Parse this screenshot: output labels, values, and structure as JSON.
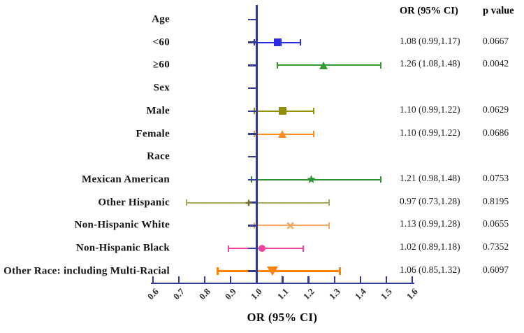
{
  "figure": {
    "x_axis_title": "OR (95% CI)"
  },
  "chart_data": {
    "type": "forest",
    "title": "",
    "xlabel": "OR (95% CI)",
    "ylabel": "",
    "x_range": [
      0.6,
      1.6
    ],
    "x_ticks": [
      "0.6",
      "0.7",
      "0.8",
      "0.9",
      "1.0",
      "1.1",
      "1.2",
      "1.3",
      "1.4",
      "1.5",
      "1.6"
    ],
    "ref_line": 1.0,
    "grid": false,
    "axis_color": "#333A93",
    "legend_position": "none",
    "columns": {
      "or_ci": "OR (95% CI)",
      "p": "p value"
    },
    "rows": [
      {
        "label": "Age",
        "group": true
      },
      {
        "label": "<60",
        "or": 1.08,
        "ci": [
          0.99,
          1.17
        ],
        "or_ci": "1.08 (0.99,1.17)",
        "p": "0.0667",
        "marker": "square",
        "color": "#2B2BE8"
      },
      {
        "label": "≥60",
        "or": 1.26,
        "ci": [
          1.08,
          1.48
        ],
        "or_ci": "1.26 (1.08,1.48)",
        "p": "0.0042",
        "marker": "triangle-up",
        "color": "#339933"
      },
      {
        "label": "Sex",
        "group": true
      },
      {
        "label": "Male",
        "or": 1.1,
        "ci": [
          0.99,
          1.22
        ],
        "or_ci": "1.10 (0.99,1.22)",
        "p": "0.0629",
        "marker": "square",
        "color": "#8F8F00"
      },
      {
        "label": "Female",
        "or": 1.1,
        "ci": [
          0.99,
          1.22
        ],
        "or_ci": "1.10 (0.99,1.22)",
        "p": "0.0686",
        "marker": "triangle-up",
        "color": "#FF8C21"
      },
      {
        "label": "Race",
        "group": true
      },
      {
        "label": "Mexican American",
        "or": 1.21,
        "ci": [
          0.98,
          1.48
        ],
        "or_ci": "1.21 (0.98,1.48)",
        "p": "0.0753",
        "marker": "star",
        "color": "#2F9135"
      },
      {
        "label": "Other Hispanic",
        "or": 0.97,
        "ci": [
          0.73,
          1.28
        ],
        "or_ci": "0.97 (0.73,1.28)",
        "p": "0.8195",
        "marker": "plus",
        "color": "#A8A855",
        "marker_color": "#6F6F28"
      },
      {
        "label": "Non-Hispanic White",
        "or": 1.13,
        "ci": [
          0.99,
          1.28
        ],
        "or_ci": "1.13 (0.99,1.28)",
        "p": "0.0655",
        "marker": "x",
        "color": "#F7A55F"
      },
      {
        "label": "Non-Hispanic Black",
        "or": 1.02,
        "ci": [
          0.89,
          1.18
        ],
        "or_ci": "1.02 (0.89,1.18)",
        "p": "0.7352",
        "marker": "circle",
        "color": "#F0449C"
      },
      {
        "label": "Other Race: including Multi-Racial",
        "or": 1.06,
        "ci": [
          0.85,
          1.32
        ],
        "or_ci": "1.06 (0.85,1.32)",
        "p": "0.6097",
        "marker": "triangle-down",
        "color": "#FF8205",
        "lw": 3.2
      }
    ]
  }
}
